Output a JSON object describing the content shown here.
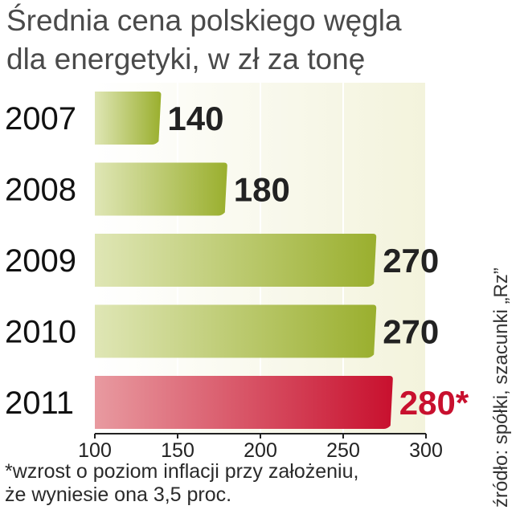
{
  "title": {
    "line1": "Średnia cena polskiego węgla",
    "line2": "dla energetyki, w zł za tonę"
  },
  "chart_data": {
    "type": "bar",
    "orientation": "horizontal",
    "categories": [
      "2007",
      "2008",
      "2009",
      "2010",
      "2011"
    ],
    "values": [
      140,
      180,
      270,
      270,
      280
    ],
    "value_labels": [
      "140",
      "180",
      "270",
      "270",
      "280*"
    ],
    "xlim": [
      100,
      300
    ],
    "xticks": [
      100,
      150,
      200,
      250,
      300
    ],
    "xtick_labels": [
      "100",
      "150",
      "200",
      "250",
      "300"
    ],
    "grid": "vertical",
    "colors": {
      "bar": "#9aaf2e",
      "bar_light": "#dfe6b5",
      "highlight_bar": "#c8102e",
      "highlight_bar_light": "#e89aa0",
      "label": "#222222",
      "highlight_label": "#c8102e",
      "background": "#f3f3dc"
    },
    "highlight_index": 4
  },
  "footnote": {
    "line1": "*wzrost o poziom inflacji przy założeniu,",
    "line2": "że wyniesie ona 3,5 proc."
  },
  "source": "źródło: spółki, szacunki „Rz”"
}
